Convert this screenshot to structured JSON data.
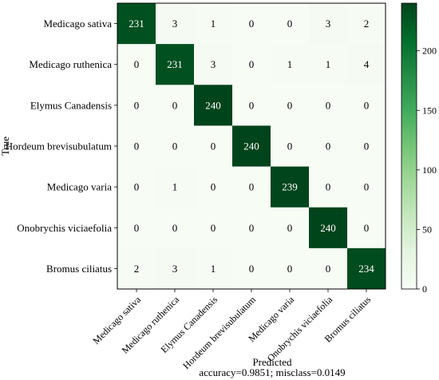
{
  "chart_data": {
    "type": "heatmap",
    "title": "",
    "ylabel": "True",
    "xlabel": "Predicted",
    "footnote": "accuracy=0.9851; misclass=0.0149",
    "row_labels": [
      "Medicago sativa",
      "Medicago ruthenica",
      "Elymus Canadensis",
      "Hordeum brevisubulatum",
      "Medicago varia",
      "Onobrychis viciaefolia",
      "Bromus ciliatus"
    ],
    "col_labels": [
      "Medicago sativa",
      "Medicago ruthenica",
      "Elymus Canadensis",
      "Hordeum brevisubulatum",
      "Medicago varia",
      "Onobrychis viciaefolia",
      "Bromus ciliatus"
    ],
    "values": [
      [
        231,
        3,
        1,
        0,
        0,
        3,
        2
      ],
      [
        0,
        231,
        3,
        0,
        1,
        1,
        4
      ],
      [
        0,
        0,
        240,
        0,
        0,
        0,
        0
      ],
      [
        0,
        0,
        0,
        240,
        0,
        0,
        0
      ],
      [
        0,
        1,
        0,
        0,
        239,
        0,
        0
      ],
      [
        0,
        0,
        0,
        0,
        0,
        240,
        0
      ],
      [
        2,
        3,
        1,
        0,
        0,
        0,
        234
      ]
    ],
    "colormap": "Greens",
    "color_low": "#f7fcf5",
    "color_high": "#00441b",
    "colorbar": {
      "min": 0,
      "max": 240,
      "ticks": [
        0,
        50,
        100,
        150,
        200
      ]
    }
  }
}
